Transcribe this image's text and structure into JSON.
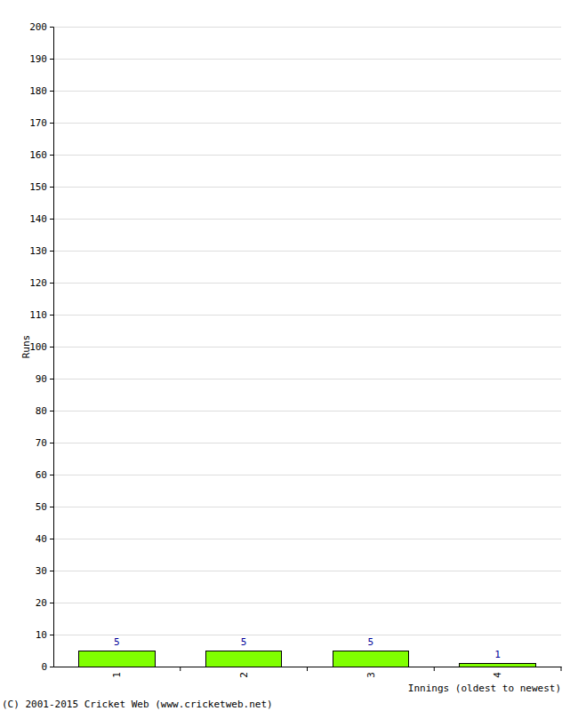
{
  "chart_data": {
    "type": "bar",
    "categories": [
      "1",
      "2",
      "3",
      "4"
    ],
    "values": [
      5,
      5,
      5,
      1
    ],
    "color": "#80ff00",
    "ylim": [
      0,
      200
    ],
    "yticks": [
      0,
      10,
      20,
      30,
      40,
      50,
      60,
      70,
      80,
      90,
      100,
      110,
      120,
      130,
      140,
      150,
      160,
      170,
      180,
      190,
      200
    ],
    "grid": true,
    "data_labels": true,
    "y_label": "Runs",
    "x_label": "Innings (oldest to newest)",
    "annotations": [
      "(C) 2001-2015 Cricket Web (www.cricketweb.net)"
    ]
  }
}
